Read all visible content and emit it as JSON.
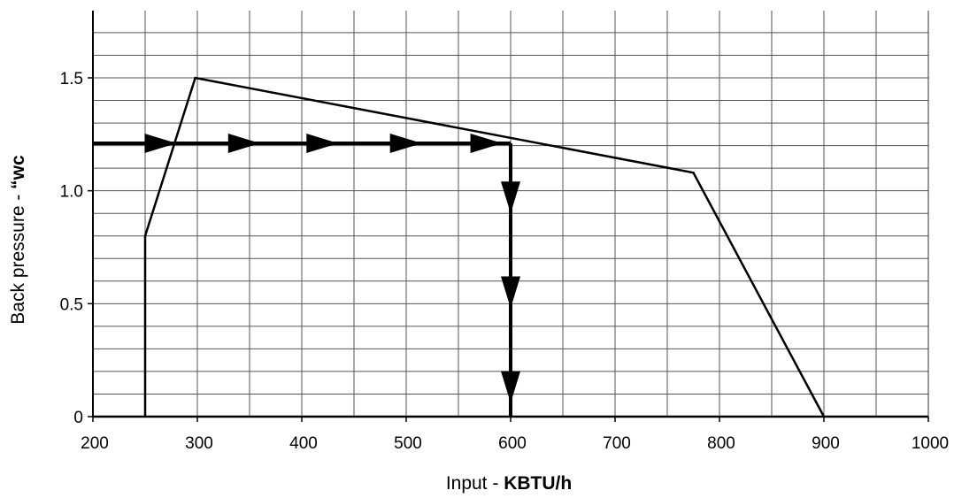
{
  "chart_data": {
    "type": "line",
    "title": "",
    "xlabel_prefix": "Input - ",
    "xlabel_unit": "KBTU/h",
    "ylabel_prefix": "Back pressure - ",
    "ylabel_unit": "“wc",
    "xlim": [
      200,
      1000
    ],
    "ylim": [
      0,
      1.5
    ],
    "x_ticks": [
      200,
      300,
      400,
      500,
      600,
      700,
      800,
      900,
      1000
    ],
    "x_tick_labels": [
      "200",
      "300",
      "400",
      "500",
      "600",
      "700",
      "800",
      "900",
      "1000"
    ],
    "y_ticks": [
      0,
      0.5,
      1.0,
      1.5
    ],
    "y_tick_labels": [
      "0",
      "0.5",
      "1.0",
      "1.5"
    ],
    "grid": true,
    "x_minor_step": 50,
    "y_minor_step": 0.1,
    "series": [
      {
        "x": [
          250,
          250,
          298,
          775,
          900
        ],
        "y": [
          0,
          0.8,
          1.5,
          1.08,
          0
        ],
        "color": "#000000"
      }
    ],
    "annotations": {
      "horizontal_path": {
        "x_start": 200,
        "x_end": 600,
        "y": 1.21
      },
      "vertical_path": {
        "x": 600,
        "y_start": 1.21,
        "y_end": 0
      },
      "horizontal_arrowheads_x": [
        280,
        360,
        435,
        515,
        592
      ],
      "vertical_arrowheads_y": [
        0.9,
        0.48,
        0.06
      ],
      "color": "#000000"
    }
  }
}
